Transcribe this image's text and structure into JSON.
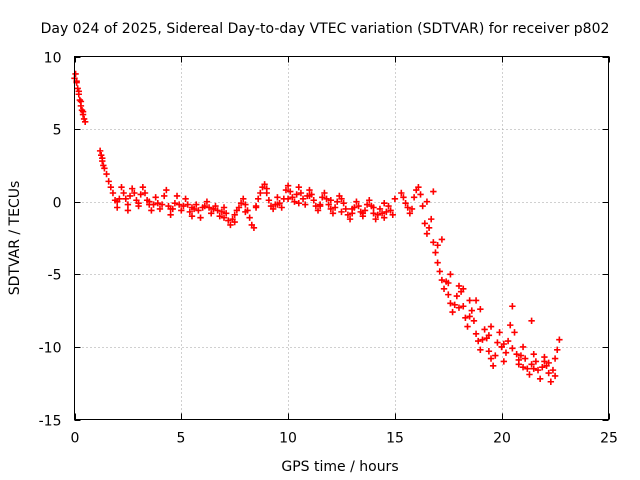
{
  "chart_data": {
    "type": "scatter",
    "title": "Day 024 of 2025, Sidereal Day-to-day VTEC variation (SDTVAR) for receiver p802",
    "xlabel": "GPS time / hours",
    "ylabel": "SDTVAR / TECUs",
    "xlim": [
      0,
      25
    ],
    "ylim": [
      -15,
      10
    ],
    "xticks": [
      0,
      5,
      10,
      15,
      20,
      25
    ],
    "yticks": [
      -15,
      -10,
      -5,
      0,
      5,
      10
    ],
    "grid": true,
    "marker": "plus",
    "series": [
      {
        "name": "SDTVAR",
        "color": "#ff0000",
        "x": [
          0.0,
          0.05,
          0.1,
          0.15,
          0.2,
          0.25,
          0.3,
          0.35,
          0.4,
          0.45,
          0.5,
          1.2,
          1.25,
          1.3,
          1.4,
          1.5,
          1.6,
          1.7,
          1.8,
          1.9,
          2.0,
          2.1,
          2.2,
          2.3,
          2.4,
          2.5,
          2.6,
          2.7,
          2.8,
          2.9,
          3.0,
          3.1,
          3.2,
          3.3,
          3.4,
          3.5,
          3.6,
          3.7,
          3.8,
          3.9,
          4.0,
          4.1,
          4.2,
          4.3,
          4.4,
          4.5,
          4.6,
          4.7,
          4.8,
          4.9,
          5.0,
          5.1,
          5.2,
          5.3,
          5.4,
          5.5,
          5.6,
          5.7,
          5.8,
          5.9,
          6.0,
          6.1,
          6.2,
          6.3,
          6.4,
          6.5,
          6.6,
          6.7,
          6.8,
          6.9,
          7.0,
          7.1,
          7.2,
          7.3,
          7.4,
          7.5,
          7.6,
          7.7,
          7.8,
          7.9,
          8.0,
          8.1,
          8.2,
          8.3,
          8.4,
          8.5,
          8.6,
          8.7,
          8.8,
          8.9,
          9.0,
          9.1,
          9.2,
          9.3,
          9.4,
          9.5,
          9.6,
          9.7,
          9.8,
          9.9,
          10.0,
          10.1,
          10.2,
          10.3,
          10.4,
          10.5,
          10.6,
          10.7,
          10.8,
          10.9,
          11.0,
          11.1,
          11.2,
          11.3,
          11.4,
          11.5,
          11.6,
          11.7,
          11.8,
          11.9,
          12.0,
          12.1,
          12.2,
          12.3,
          12.4,
          12.5,
          12.6,
          12.7,
          12.8,
          12.9,
          13.0,
          13.1,
          13.2,
          13.3,
          13.4,
          13.5,
          13.6,
          13.7,
          13.8,
          13.9,
          14.0,
          14.1,
          14.2,
          14.3,
          14.4,
          14.5,
          14.6,
          14.7,
          14.8,
          14.9,
          15.0,
          15.3,
          15.4,
          15.5,
          15.6,
          15.7,
          15.8,
          15.9,
          16.0,
          16.1,
          16.2,
          16.3,
          16.4,
          16.5,
          16.6,
          16.7,
          16.8,
          16.9,
          17.0,
          17.1,
          17.2,
          17.3,
          17.4,
          17.5,
          17.6,
          17.7,
          17.8,
          17.9,
          18.0,
          18.1,
          18.2,
          18.3,
          18.4,
          18.5,
          18.6,
          18.7,
          18.8,
          18.9,
          19.0,
          19.1,
          19.2,
          19.3,
          19.4,
          19.5,
          19.6,
          19.7,
          19.8,
          19.9,
          20.0,
          20.1,
          20.2,
          20.3,
          20.4,
          20.5,
          20.6,
          20.7,
          20.8,
          20.9,
          21.0,
          21.1,
          21.2,
          21.3,
          21.4,
          21.5,
          21.6,
          21.7,
          21.8,
          21.9,
          22.0,
          22.1,
          22.2,
          22.3,
          22.4,
          22.5,
          22.6,
          22.7,
          2.0,
          2.5,
          3.0,
          3.5,
          4.5,
          5.5,
          6.5,
          7.0,
          7.5,
          8.0,
          8.5,
          9.0,
          9.5,
          10.0,
          10.5,
          11.0,
          11.5,
          12.0,
          12.5,
          13.0,
          13.5,
          14.0,
          14.5,
          16.5,
          17.0,
          17.5,
          18.0,
          18.5,
          19.0,
          19.5,
          20.0,
          20.5,
          21.0,
          21.5,
          22.0,
          22.5,
          0.1,
          0.2,
          0.3,
          0.4,
          1.3,
          1.35,
          16.8,
          17.2,
          17.6,
          18.2,
          18.8,
          19.4,
          20.1,
          20.8,
          21.4,
          22.2
        ],
        "y": [
          8.5,
          8.8,
          8.3,
          7.8,
          7.4,
          7.0,
          6.6,
          6.3,
          6.0,
          5.7,
          5.5,
          3.5,
          3.2,
          2.8,
          2.3,
          1.9,
          1.4,
          1.0,
          0.6,
          0.1,
          -0.4,
          0.2,
          1.0,
          0.6,
          0.2,
          -0.2,
          0.4,
          0.9,
          0.6,
          0.1,
          -0.3,
          0.5,
          1.0,
          0.6,
          0.1,
          -0.2,
          -0.6,
          -0.2,
          0.3,
          -0.1,
          -0.5,
          -0.2,
          0.4,
          0.8,
          -0.3,
          -0.9,
          -0.5,
          -0.1,
          0.4,
          -0.2,
          -0.6,
          -0.3,
          0.2,
          -0.2,
          -0.7,
          -1.0,
          -0.5,
          -0.2,
          -0.6,
          -1.1,
          -0.4,
          -0.3,
          0.0,
          -0.4,
          -0.8,
          -0.5,
          -0.3,
          -0.6,
          -1.0,
          -0.7,
          -0.4,
          -0.8,
          -1.3,
          -1.6,
          -1.2,
          -0.9,
          -0.6,
          -0.4,
          -0.1,
          0.2,
          -0.2,
          -0.6,
          -1.1,
          -1.6,
          -1.8,
          -0.4,
          0.2,
          0.6,
          1.0,
          1.2,
          0.6,
          0.1,
          -0.3,
          -0.5,
          -0.2,
          0.3,
          -0.1,
          -0.4,
          0.2,
          0.8,
          1.1,
          0.7,
          0.3,
          0.0,
          0.5,
          1.0,
          0.6,
          0.2,
          -0.2,
          0.4,
          0.8,
          0.5,
          0.1,
          -0.3,
          -0.6,
          -0.2,
          0.3,
          0.6,
          0.2,
          -0.2,
          -0.5,
          -0.8,
          -0.4,
          0.0,
          0.4,
          0.2,
          -0.1,
          -0.5,
          -0.9,
          -1.2,
          -0.8,
          -0.4,
          0.0,
          -0.3,
          -0.7,
          -1.0,
          -0.6,
          -0.2,
          0.1,
          -0.3,
          -0.8,
          -1.2,
          -0.9,
          -0.5,
          -0.8,
          -1.1,
          -0.7,
          -0.3,
          -0.6,
          -0.9,
          0.2,
          0.6,
          0.3,
          -0.1,
          -0.4,
          -0.8,
          -0.5,
          0.3,
          0.8,
          1.0,
          0.5,
          -0.3,
          -1.5,
          -2.2,
          -1.8,
          -1.2,
          -2.8,
          -3.5,
          -4.2,
          -4.8,
          -5.4,
          -6.0,
          -5.5,
          -6.4,
          -7.0,
          -7.6,
          -7.1,
          -6.5,
          -5.8,
          -6.2,
          -7.2,
          -8.0,
          -8.6,
          -7.9,
          -7.5,
          -8.2,
          -9.1,
          -9.6,
          -10.2,
          -9.5,
          -8.8,
          -9.4,
          -10.3,
          -10.8,
          -11.3,
          -10.6,
          -9.7,
          -9.0,
          -10.0,
          -11.0,
          -10.4,
          -9.6,
          -8.5,
          -7.2,
          -9.0,
          -10.5,
          -11.2,
          -10.6,
          -10.0,
          -10.8,
          -11.5,
          -11.9,
          -11.2,
          -10.5,
          -11.0,
          -11.6,
          -12.2,
          -11.4,
          -10.7,
          -11.3,
          -11.8,
          -12.4,
          -11.6,
          -10.8,
          -10.2,
          -9.5,
          0.0,
          -0.6,
          -0.1,
          0.0,
          -0.5,
          -0.4,
          -0.5,
          -1.1,
          -1.4,
          -0.7,
          -0.3,
          0.9,
          -0.2,
          0.2,
          -0.1,
          0.4,
          -0.3,
          0.1,
          -0.7,
          -0.5,
          -0.8,
          -0.4,
          -0.1,
          0.0,
          -3.0,
          -5.6,
          -7.3,
          -6.8,
          -7.4,
          -8.6,
          -10.0,
          -10.1,
          -11.4,
          -11.5,
          -11.0,
          -12.0,
          8.2,
          7.6,
          6.9,
          6.2,
          3.0,
          2.5,
          0.7,
          -2.6,
          -5.0,
          -6.0,
          -6.8,
          -9.2,
          -9.8,
          -10.9,
          -8.2,
          -11.1
        ]
      }
    ]
  }
}
